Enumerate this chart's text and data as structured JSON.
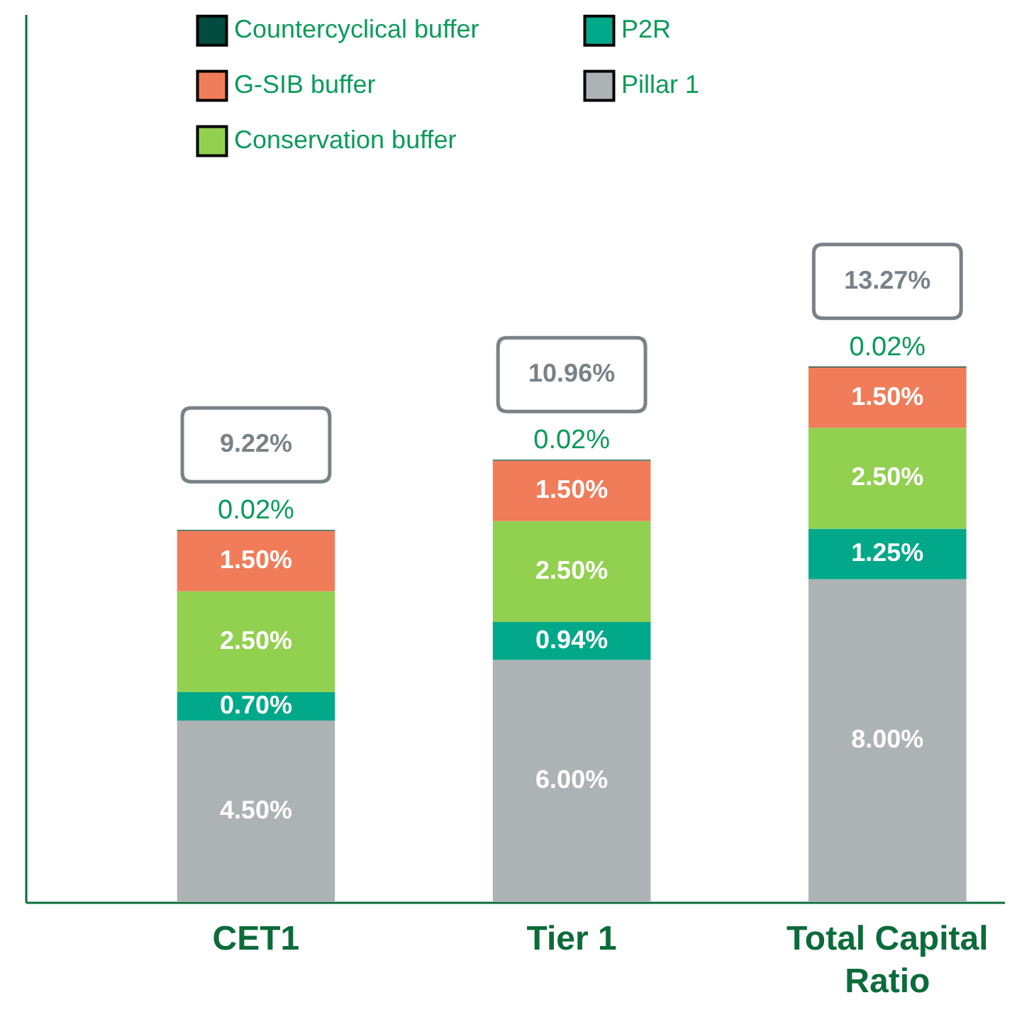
{
  "chart_data": {
    "type": "bar",
    "stacked": true,
    "categories": [
      "CET1",
      "Tier 1",
      "Total Capital Ratio"
    ],
    "ylim": [
      0,
      22
    ],
    "tick_labels": "x",
    "legend": "top left",
    "series": [
      {
        "name": "Pillar 1",
        "color": "#adb2b5",
        "values": [
          4.5,
          6.0,
          8.0
        ],
        "value_labels": [
          "4.50%",
          "6.00%",
          "8.00%"
        ]
      },
      {
        "name": "P2R",
        "color": "#00a88a",
        "values": [
          0.7,
          0.94,
          1.25
        ],
        "value_labels": [
          "0.70%",
          "0.94%",
          "1.25%"
        ]
      },
      {
        "name": "Conservation buffer",
        "color": "#92d050",
        "values": [
          2.5,
          2.5,
          2.5
        ],
        "value_labels": [
          "2.50%",
          "2.50%",
          "2.50%"
        ]
      },
      {
        "name": "G-SIB buffer",
        "color": "#f07c5a",
        "values": [
          1.5,
          1.5,
          1.5
        ],
        "value_labels": [
          "1.50%",
          "1.50%",
          "1.50%"
        ]
      },
      {
        "name": "Countercyclical buffer",
        "color": "#004d40",
        "values": [
          0.02,
          0.02,
          0.02
        ],
        "value_labels": [
          "0.02%",
          "0.02%",
          "0.02%"
        ]
      }
    ],
    "totals": [
      "9.22%",
      "10.96%",
      "13.27%"
    ]
  }
}
